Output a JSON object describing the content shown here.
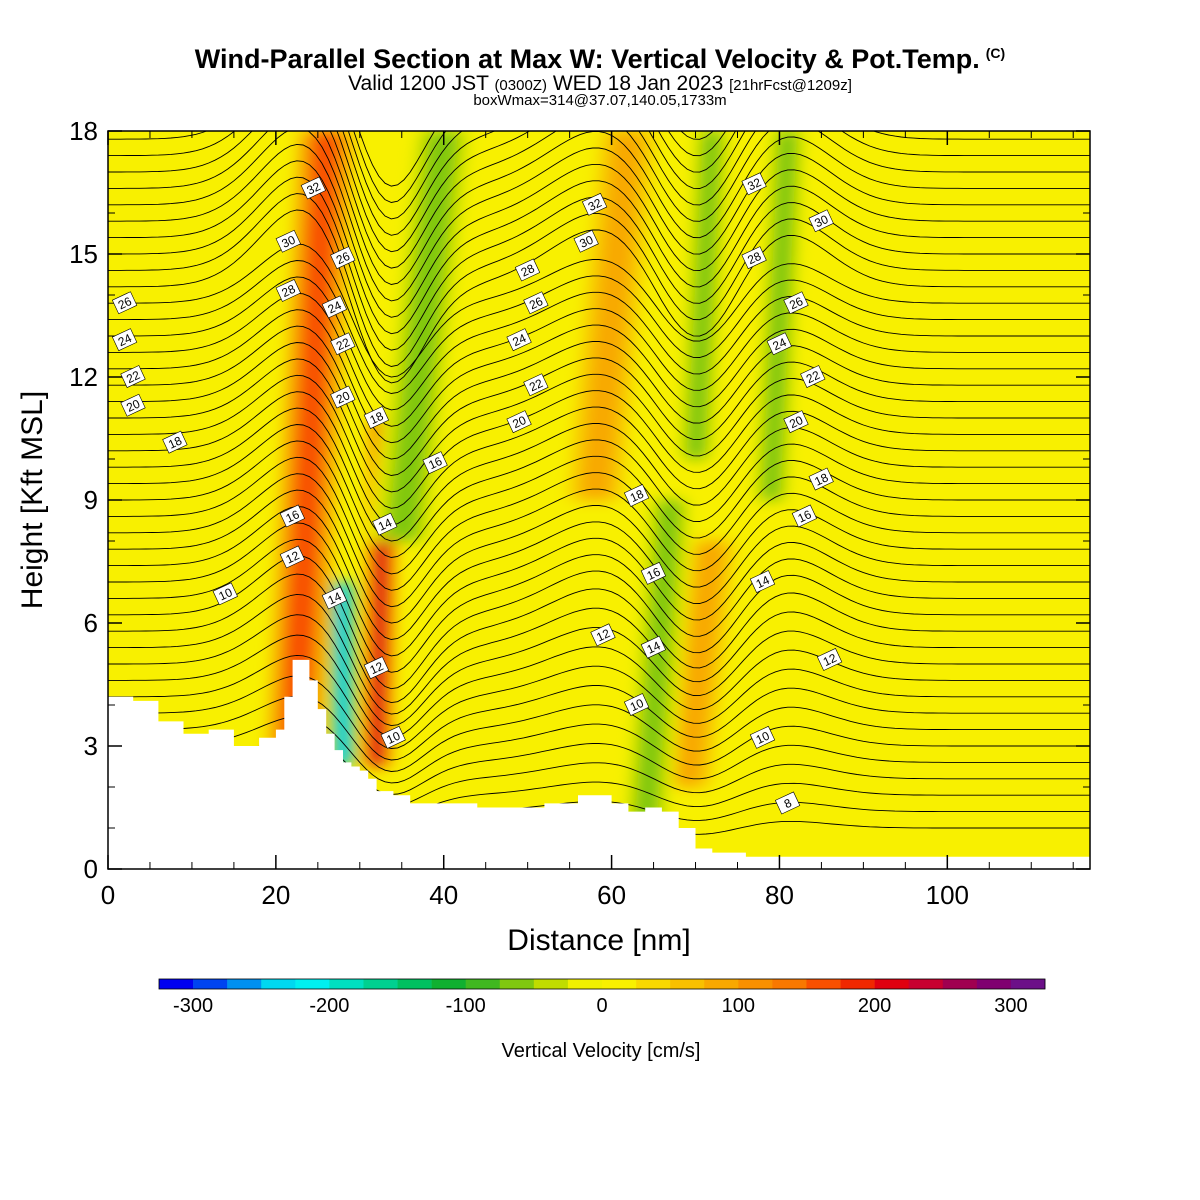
{
  "title": {
    "main": "Wind-Parallel Section at Max W: Vertical Velocity & Pot.Temp.",
    "copyright": "(C)",
    "valid_prefix": "Valid 1200 JST",
    "valid_zulu": "(0300Z)",
    "valid_date": "WED 18 Jan 2023",
    "forecast": "[21hrFcst@1209z]",
    "box_max": "boxWmax=314@37.07,140.05,1733m"
  },
  "colors": {
    "ramp": [
      "#0000f0",
      "#0044f0",
      "#0090f0",
      "#00d8f0",
      "#00f0f0",
      "#00e0c0",
      "#00d090",
      "#00c060",
      "#10b030",
      "#40b820",
      "#80c810",
      "#c0dc00",
      "#f0f000",
      "#f8f000",
      "#f8d800",
      "#f8c000",
      "#f8a800",
      "#f89000",
      "#f87800",
      "#f85000",
      "#f02800",
      "#e00010",
      "#c80030",
      "#a00050",
      "#800070",
      "#6c1088"
    ],
    "terrain": "#ffffff",
    "contour": "#000000"
  },
  "chart_data": {
    "type": "heatmap",
    "xlabel": "Distance [nm]",
    "ylabel": "Height [Kft MSL]",
    "xlim": [
      0,
      117
    ],
    "ylim": [
      0,
      18
    ],
    "xticks": [
      0,
      20,
      40,
      60,
      80,
      100
    ],
    "yticks": [
      0,
      3,
      6,
      9,
      12,
      15,
      18
    ],
    "colorbar": {
      "label": "Vertical Velocity [cm/s]",
      "min": -325,
      "max": 325,
      "ticks": [
        -300,
        -200,
        -100,
        0,
        100,
        200,
        300
      ]
    },
    "terrain_profile": {
      "x": [
        0,
        3,
        6,
        9,
        12,
        15,
        18,
        20,
        21,
        22,
        23,
        24,
        25,
        26,
        27,
        28,
        29,
        30,
        31,
        32,
        34,
        36,
        38,
        40,
        44,
        48,
        52,
        56,
        60,
        62,
        64,
        66,
        68,
        70,
        72,
        76,
        80,
        84,
        90,
        100,
        110,
        117
      ],
      "height_kft": [
        4.2,
        4.1,
        3.6,
        3.3,
        3.4,
        3.0,
        3.2,
        3.4,
        4.2,
        5.1,
        5.1,
        4.6,
        3.9,
        3.3,
        2.9,
        2.6,
        2.5,
        2.4,
        2.2,
        1.9,
        1.8,
        1.6,
        1.6,
        1.6,
        1.5,
        1.5,
        1.6,
        1.8,
        1.6,
        1.4,
        1.5,
        1.4,
        1.0,
        0.5,
        0.4,
        0.3,
        0.3,
        0.3,
        0.3,
        0.3,
        0.3,
        0.3
      ]
    },
    "vertical_velocity_features": [
      {
        "kind": "updraft",
        "x0": 22,
        "x1": 26,
        "h0": 2,
        "h1": 18,
        "max_cms": 180
      },
      {
        "kind": "updraft",
        "x0": 32,
        "x1": 33,
        "h0": 2.5,
        "h1": 11,
        "max_cms": 250
      },
      {
        "kind": "updraft",
        "x0": 58,
        "x1": 62,
        "h0": 9,
        "h1": 18,
        "max_cms": 100
      },
      {
        "kind": "updraft",
        "x0": 69,
        "x1": 72,
        "h0": 2,
        "h1": 8,
        "max_cms": 110
      },
      {
        "kind": "downdraft",
        "x0": 28,
        "x1": 28,
        "h0": 2.5,
        "h1": 7,
        "min_cms": -270
      },
      {
        "kind": "downdraft",
        "x0": 35,
        "x1": 40,
        "h0": 8,
        "h1": 18,
        "min_cms": -90
      },
      {
        "kind": "downdraft",
        "x0": 64,
        "x1": 67,
        "h0": 1,
        "h1": 9,
        "min_cms": -90
      },
      {
        "kind": "downdraft",
        "x0": 70,
        "x1": 72,
        "h0": 10,
        "h1": 18,
        "min_cms": -90
      },
      {
        "kind": "downdraft",
        "x0": 79,
        "x1": 81,
        "h0": 9,
        "h1": 18,
        "min_cms": -90
      }
    ],
    "theta_contour_labels": [
      {
        "text": "32",
        "x": 24.5,
        "y": 16.6
      },
      {
        "text": "30",
        "x": 21.5,
        "y": 15.3
      },
      {
        "text": "28",
        "x": 21.5,
        "y": 14.1
      },
      {
        "text": "26",
        "x": 28.0,
        "y": 14.9
      },
      {
        "text": "24",
        "x": 27.0,
        "y": 13.7
      },
      {
        "text": "22",
        "x": 28.0,
        "y": 12.8
      },
      {
        "text": "20",
        "x": 28.0,
        "y": 11.5
      },
      {
        "text": "18",
        "x": 32.0,
        "y": 11.0
      },
      {
        "text": "16",
        "x": 39.0,
        "y": 9.9
      },
      {
        "text": "14",
        "x": 33.0,
        "y": 8.4
      },
      {
        "text": "12",
        "x": 32.0,
        "y": 4.9
      },
      {
        "text": "10",
        "x": 34.0,
        "y": 3.2
      },
      {
        "text": "14",
        "x": 27.0,
        "y": 6.6
      },
      {
        "text": "16",
        "x": 22.0,
        "y": 8.6
      },
      {
        "text": "12",
        "x": 22.0,
        "y": 7.6
      },
      {
        "text": "10",
        "x": 14.0,
        "y": 6.7
      },
      {
        "text": "26",
        "x": 2.0,
        "y": 13.8
      },
      {
        "text": "24",
        "x": 2.0,
        "y": 12.9
      },
      {
        "text": "22",
        "x": 3.0,
        "y": 12.0
      },
      {
        "text": "20",
        "x": 3.0,
        "y": 11.3
      },
      {
        "text": "18",
        "x": 8.0,
        "y": 10.4
      },
      {
        "text": "32",
        "x": 58.0,
        "y": 16.2
      },
      {
        "text": "30",
        "x": 57.0,
        "y": 15.3
      },
      {
        "text": "28",
        "x": 50.0,
        "y": 14.6
      },
      {
        "text": "26",
        "x": 51.0,
        "y": 13.8
      },
      {
        "text": "24",
        "x": 49.0,
        "y": 12.9
      },
      {
        "text": "22",
        "x": 51.0,
        "y": 11.8
      },
      {
        "text": "20",
        "x": 49.0,
        "y": 10.9
      },
      {
        "text": "18",
        "x": 63.0,
        "y": 9.1
      },
      {
        "text": "16",
        "x": 65.0,
        "y": 7.2
      },
      {
        "text": "12",
        "x": 59.0,
        "y": 5.7
      },
      {
        "text": "14",
        "x": 65.0,
        "y": 5.4
      },
      {
        "text": "10",
        "x": 63.0,
        "y": 4.0
      },
      {
        "text": "32",
        "x": 77.0,
        "y": 16.7
      },
      {
        "text": "30",
        "x": 85.0,
        "y": 15.8
      },
      {
        "text": "28",
        "x": 77.0,
        "y": 14.9
      },
      {
        "text": "26",
        "x": 82.0,
        "y": 13.8
      },
      {
        "text": "24",
        "x": 80.0,
        "y": 12.8
      },
      {
        "text": "22",
        "x": 84.0,
        "y": 12.0
      },
      {
        "text": "20",
        "x": 82.0,
        "y": 10.9
      },
      {
        "text": "18",
        "x": 85.0,
        "y": 9.5
      },
      {
        "text": "16",
        "x": 83.0,
        "y": 8.6
      },
      {
        "text": "14",
        "x": 78.0,
        "y": 7.0
      },
      {
        "text": "12",
        "x": 86.0,
        "y": 5.1
      },
      {
        "text": "10",
        "x": 78.0,
        "y": 3.2
      },
      {
        "text": "8",
        "x": 81.0,
        "y": 1.6
      }
    ]
  }
}
